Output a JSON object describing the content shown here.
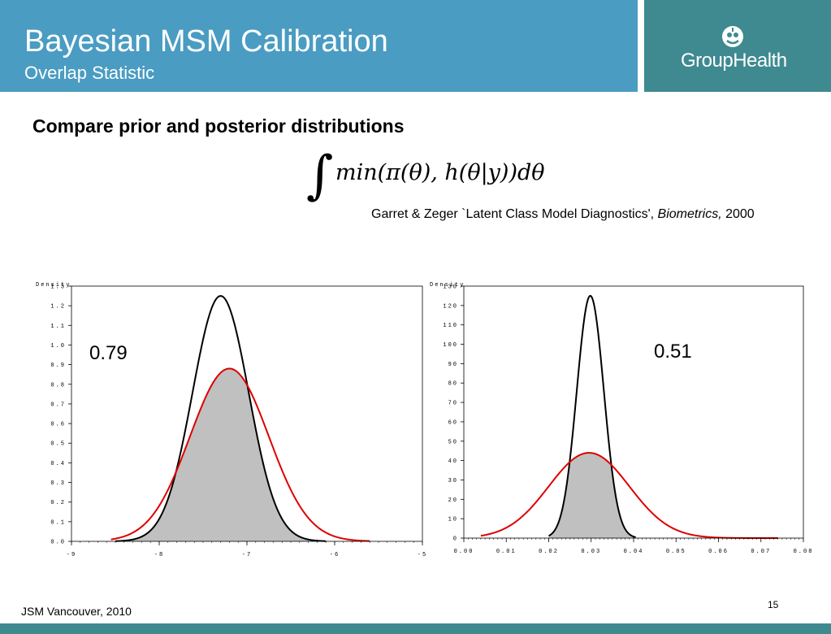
{
  "header": {
    "title": "Bayesian MSM Calibration",
    "subtitle": "Overlap Statistic",
    "logo_text": "GroupHealth",
    "logo_icon": "group-health-emblem",
    "colors": {
      "left_panel": "#4a9cc2",
      "right_panel": "#3e8a90"
    }
  },
  "main": {
    "heading": "Compare prior and posterior distributions",
    "formula": "∫ min(π(θ), h(θ|y))dθ",
    "citation_prefix": "Garret & Zeger `Latent Class Model Diagnostics', ",
    "citation_journal": "Biometrics,",
    "citation_year": " 2000"
  },
  "chart_data": [
    {
      "type": "area",
      "ylabel": "Density",
      "xlim": [
        -9,
        -5
      ],
      "ylim": [
        0,
        1.3
      ],
      "xticks": [
        "-9",
        "-8",
        "-7",
        "-6",
        "-5"
      ],
      "yticks": [
        "0.0",
        "0.1",
        "0.2",
        "0.3",
        "0.4",
        "0.5",
        "0.6",
        "0.7",
        "0.8",
        "0.9",
        "1.0",
        "1.1",
        "1.2",
        "1.3"
      ],
      "annotation": "0.79",
      "series": [
        {
          "color": "#000000",
          "mean": -7.3,
          "sd": 0.32,
          "peak": 1.25,
          "from": -8.5,
          "to": -6.1
        },
        {
          "color": "#dd0000",
          "mean": -7.2,
          "sd": 0.45,
          "peak": 0.88,
          "from": -8.55,
          "to": -5.6
        }
      ],
      "shaded_overlap": true
    },
    {
      "type": "area",
      "ylabel": "Density",
      "xlim": [
        0,
        0.08
      ],
      "ylim": [
        0,
        130
      ],
      "xticks": [
        "0.00",
        "0.01",
        "0.02",
        "0.03",
        "0.04",
        "0.05",
        "0.06",
        "0.07",
        "0.08"
      ],
      "yticks": [
        "0",
        "10",
        "20",
        "30",
        "40",
        "50",
        "60",
        "70",
        "80",
        "90",
        "100",
        "110",
        "120",
        "130"
      ],
      "annotation": "0.51",
      "series": [
        {
          "color": "#000000",
          "mean": 0.0298,
          "sd": 0.0032,
          "peak": 125,
          "from": 0.02,
          "to": 0.0405
        },
        {
          "color": "#dd0000",
          "mean": 0.0295,
          "sd": 0.0095,
          "peak": 44,
          "from": 0.004,
          "to": 0.074
        }
      ],
      "shaded_overlap": true
    }
  ],
  "footer": {
    "left": "JSM Vancouver, 2010",
    "page": "15"
  }
}
